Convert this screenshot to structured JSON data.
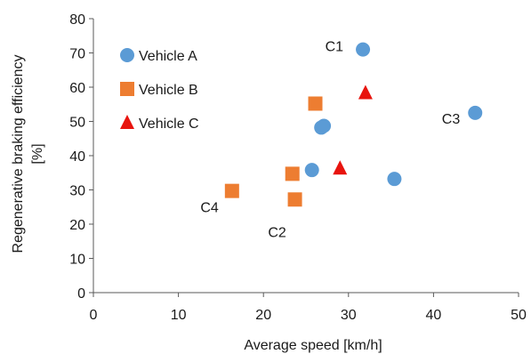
{
  "chart_data": {
    "type": "scatter",
    "title": "",
    "xlabel": "Average speed  [km/h]",
    "ylabel_lines": [
      "Regenerative braking efficiency",
      "[%]"
    ],
    "xlim": [
      0,
      50
    ],
    "ylim": [
      0,
      80
    ],
    "xticks": [
      0,
      10,
      20,
      30,
      40,
      50
    ],
    "yticks": [
      0,
      10,
      20,
      30,
      40,
      50,
      60,
      70,
      80
    ],
    "grid": false,
    "legend_position": "top-left",
    "series": [
      {
        "name": "Vehicle A",
        "marker": "circle",
        "color": "#5B9BD5",
        "points": [
          {
            "x": 31.7,
            "y": 71.0
          },
          {
            "x": 26.8,
            "y": 48.2
          },
          {
            "x": 27.1,
            "y": 48.7
          },
          {
            "x": 25.7,
            "y": 35.8
          },
          {
            "x": 35.4,
            "y": 33.2
          },
          {
            "x": 44.9,
            "y": 52.5
          }
        ]
      },
      {
        "name": "Vehicle B",
        "marker": "square",
        "color": "#ED7D31",
        "points": [
          {
            "x": 26.1,
            "y": 55.2
          },
          {
            "x": 23.4,
            "y": 34.7
          },
          {
            "x": 23.7,
            "y": 27.2
          },
          {
            "x": 16.3,
            "y": 29.7
          }
        ]
      },
      {
        "name": "Vehicle C",
        "marker": "triangle",
        "color": "#E8140E",
        "points": [
          {
            "x": 32.0,
            "y": 58.3
          },
          {
            "x": 29.0,
            "y": 36.3
          }
        ]
      }
    ],
    "annotations": [
      {
        "text": "C1",
        "x": 31.7,
        "y": 71.0
      },
      {
        "text": "C2",
        "x": 23.7,
        "y": 27.2
      },
      {
        "text": "C3",
        "x": 44.9,
        "y": 52.5
      },
      {
        "text": "C4",
        "x": 16.3,
        "y": 29.7
      }
    ]
  }
}
